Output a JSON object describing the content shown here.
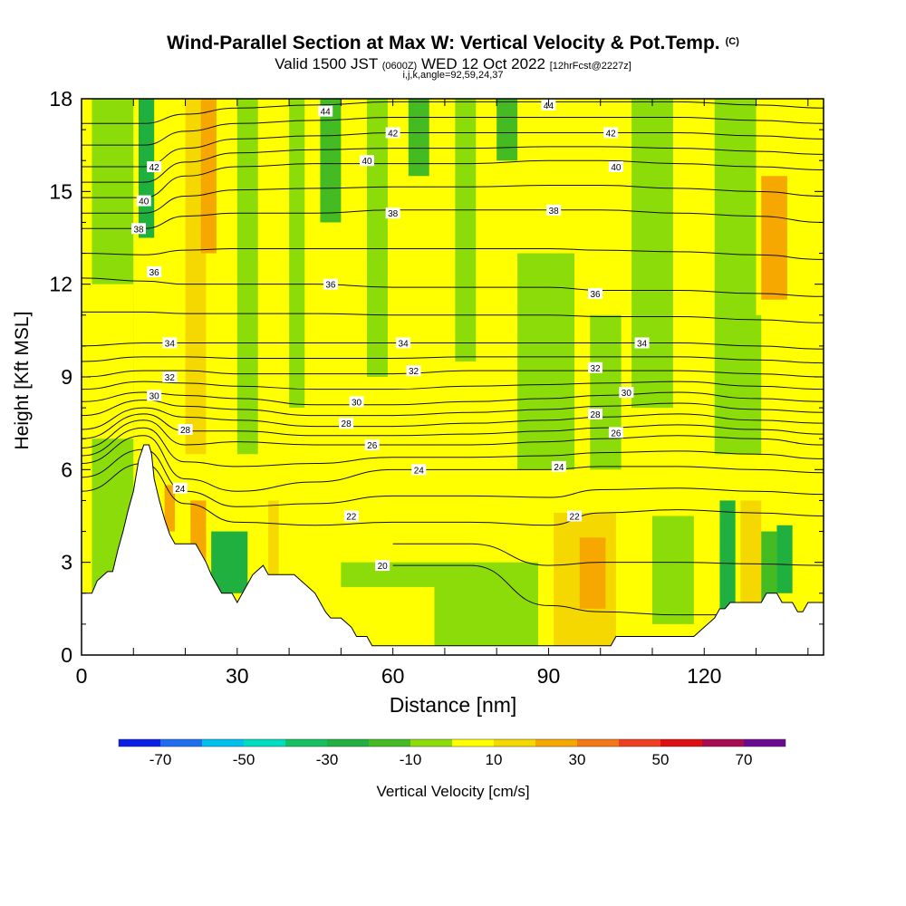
{
  "header": {
    "title": "Wind-Parallel Section at Max W: Vertical Velocity & Pot.Temp.",
    "copyright": "(C)",
    "valid_prefix": "Valid 1500 JST",
    "valid_utc": "(0600Z)",
    "valid_date": "WED 12 Oct 2022",
    "forecast_info": "[12hrFcst@2227z]",
    "section_info": "i,j,k,angle=92,59,24,37"
  },
  "chart_data": {
    "type": "heatmap",
    "title": "Wind-Parallel Section at Max W: Vertical Velocity & Pot.Temp.",
    "xlabel": "Distance [nm]",
    "ylabel": "Height [Kft MSL]",
    "xlim": [
      0,
      143
    ],
    "ylim": [
      0,
      18
    ],
    "x_ticks": [
      "0",
      "30",
      "60",
      "90",
      "120"
    ],
    "x_tick_values": [
      0,
      30,
      60,
      90,
      120
    ],
    "y_ticks": [
      "0",
      "3",
      "6",
      "9",
      "12",
      "15",
      "18"
    ],
    "y_tick_values": [
      0,
      3,
      6,
      9,
      12,
      15,
      18
    ],
    "colorbar": {
      "title": "Vertical Velocity [cm/s]",
      "boundaries": [
        -80,
        -70,
        -60,
        -50,
        -40,
        -30,
        -20,
        -10,
        0,
        10,
        20,
        30,
        40,
        50,
        60,
        70,
        80
      ],
      "colors": [
        "#0a1ee6",
        "#1e6ef0",
        "#00c0f0",
        "#00dcc0",
        "#14c060",
        "#20b040",
        "#44bb22",
        "#8cdc0a",
        "#ffff00",
        "#f4d800",
        "#f6a800",
        "#f27818",
        "#ee4020",
        "#dc1010",
        "#a80c50",
        "#6a0a90"
      ],
      "tick_labels": [
        "-70",
        "-50",
        "-30",
        "-10",
        "10",
        "30",
        "50",
        "70"
      ],
      "tick_values": [
        -70,
        -50,
        -30,
        -10,
        10,
        30,
        50,
        70
      ]
    },
    "field_regions": [
      {
        "x": [
          0,
          143
        ],
        "y": [
          0,
          18
        ],
        "w": 5
      },
      {
        "x": [
          2,
          10
        ],
        "y": [
          0,
          18
        ],
        "w": -8
      },
      {
        "x": [
          11,
          14
        ],
        "y": [
          13.5,
          18
        ],
        "w": -25
      },
      {
        "x": [
          20,
          24
        ],
        "y": [
          4,
          18
        ],
        "w": 18
      },
      {
        "x": [
          23,
          26
        ],
        "y": [
          13,
          18
        ],
        "w": 20
      },
      {
        "x": [
          30,
          34
        ],
        "y": [
          6.5,
          18
        ],
        "w": -8
      },
      {
        "x": [
          40,
          43
        ],
        "y": [
          8,
          18
        ],
        "w": -10
      },
      {
        "x": [
          46,
          50
        ],
        "y": [
          14,
          18
        ],
        "w": -12
      },
      {
        "x": [
          55,
          59
        ],
        "y": [
          9,
          18
        ],
        "w": -8
      },
      {
        "x": [
          63,
          67
        ],
        "y": [
          15.5,
          18
        ],
        "w": -15
      },
      {
        "x": [
          72,
          76
        ],
        "y": [
          9.5,
          18
        ],
        "w": -8
      },
      {
        "x": [
          80,
          84
        ],
        "y": [
          16,
          18
        ],
        "w": -12
      },
      {
        "x": [
          84,
          95
        ],
        "y": [
          6,
          13
        ],
        "w": -7
      },
      {
        "x": [
          98,
          104
        ],
        "y": [
          6,
          11
        ],
        "w": -7
      },
      {
        "x": [
          106,
          114
        ],
        "y": [
          8,
          18
        ],
        "w": -7
      },
      {
        "x": [
          122,
          131
        ],
        "y": [
          6.5,
          18
        ],
        "w": -6
      },
      {
        "x": [
          130,
          141
        ],
        "y": [
          11,
          18
        ],
        "w": 6
      },
      {
        "x": [
          131,
          136
        ],
        "y": [
          11.5,
          15.5
        ],
        "w": 22
      },
      {
        "x": [
          2,
          10
        ],
        "y": [
          7,
          12
        ],
        "w": 8
      },
      {
        "x": [
          13,
          24
        ],
        "y": [
          2.5,
          6.5
        ],
        "w": 8
      },
      {
        "x": [
          16,
          18
        ],
        "y": [
          4,
          5.5
        ],
        "w": 24
      },
      {
        "x": [
          21,
          24
        ],
        "y": [
          3,
          5
        ],
        "w": 22
      },
      {
        "x": [
          25,
          32
        ],
        "y": [
          2,
          4
        ],
        "w": -22
      },
      {
        "x": [
          36,
          38
        ],
        "y": [
          2.5,
          5
        ],
        "w": 15
      },
      {
        "x": [
          50,
          88
        ],
        "y": [
          0,
          3
        ],
        "w": -6
      },
      {
        "x": [
          48,
          68
        ],
        "y": [
          0.3,
          2.2
        ],
        "w": 5
      },
      {
        "x": [
          91,
          103
        ],
        "y": [
          0.3,
          4.6
        ],
        "w": 15
      },
      {
        "x": [
          96,
          101
        ],
        "y": [
          1.5,
          3.8
        ],
        "w": 28
      },
      {
        "x": [
          104,
          110
        ],
        "y": [
          0.5,
          4.5
        ],
        "w": 6
      },
      {
        "x": [
          110,
          118
        ],
        "y": [
          1,
          4.5
        ],
        "w": -6
      },
      {
        "x": [
          119,
          122
        ],
        "y": [
          1.5,
          5
        ],
        "w": 8
      },
      {
        "x": [
          123,
          126
        ],
        "y": [
          1.5,
          5
        ],
        "w": -28
      },
      {
        "x": [
          127,
          131
        ],
        "y": [
          1.5,
          5
        ],
        "w": 10
      },
      {
        "x": [
          131,
          134
        ],
        "y": [
          1.5,
          4
        ],
        "w": -12
      },
      {
        "x": [
          134,
          137
        ],
        "y": [
          2,
          4.2
        ],
        "w": -25
      },
      {
        "x": [
          138,
          143
        ],
        "y": [
          0,
          6
        ],
        "w": 8
      }
    ],
    "terrain_kft": [
      [
        0,
        2.0
      ],
      [
        2,
        2.0
      ],
      [
        3,
        2.4
      ],
      [
        5,
        2.7
      ],
      [
        6,
        2.7
      ],
      [
        7,
        3.4
      ],
      [
        8,
        4.0
      ],
      [
        9,
        4.7
      ],
      [
        10,
        5.3
      ],
      [
        11,
        6.3
      ],
      [
        12,
        6.8
      ],
      [
        13,
        6.8
      ],
      [
        13.5,
        6.5
      ],
      [
        14,
        5.7
      ],
      [
        15,
        5.0
      ],
      [
        16,
        4.4
      ],
      [
        17,
        3.9
      ],
      [
        18,
        3.6
      ],
      [
        22,
        3.6
      ],
      [
        23,
        3.3
      ],
      [
        24,
        3.0
      ],
      [
        25,
        2.6
      ],
      [
        26,
        2.3
      ],
      [
        27,
        2.0
      ],
      [
        29,
        2.0
      ],
      [
        30,
        1.7
      ],
      [
        31,
        2.0
      ],
      [
        32,
        2.3
      ],
      [
        33,
        2.6
      ],
      [
        35,
        2.9
      ],
      [
        36,
        2.6
      ],
      [
        41,
        2.6
      ],
      [
        43,
        2.3
      ],
      [
        45,
        2.0
      ],
      [
        46,
        1.7
      ],
      [
        47,
        1.4
      ],
      [
        48,
        1.2
      ],
      [
        50,
        1.2
      ],
      [
        52,
        0.9
      ],
      [
        53,
        0.6
      ],
      [
        55,
        0.6
      ],
      [
        56,
        0.3
      ],
      [
        58,
        0.3
      ],
      [
        102,
        0.3
      ],
      [
        103,
        0.6
      ],
      [
        118,
        0.6
      ],
      [
        120,
        0.9
      ],
      [
        122,
        1.2
      ],
      [
        123,
        1.5
      ],
      [
        124,
        1.5
      ],
      [
        125,
        1.7
      ],
      [
        131,
        1.7
      ],
      [
        132,
        2.0
      ],
      [
        134,
        2.0
      ],
      [
        135,
        1.7
      ],
      [
        137,
        1.7
      ],
      [
        138,
        1.4
      ],
      [
        139,
        1.4
      ],
      [
        140,
        1.7
      ],
      [
        143,
        1.7
      ]
    ],
    "contour_interval": 1,
    "contour_start": 20,
    "contour_end": 45,
    "contour_heights_at": [
      0,
      12,
      20,
      30,
      45,
      60,
      75,
      90,
      100,
      115,
      130,
      143
    ],
    "contour_levels_kft": {
      "20": [
        -1,
        -1,
        -1,
        -1,
        -1,
        2.9,
        2.9,
        1.6,
        1.4,
        1.3,
        1.3,
        1.3
      ],
      "22": [
        5.3,
        6.2,
        4.9,
        4.3,
        4.2,
        4.3,
        4.3,
        4.2,
        4.6,
        4.7,
        4.6,
        4.5
      ],
      "24": [
        6.2,
        7.1,
        5.7,
        5.3,
        5.6,
        6.0,
        6.0,
        6.0,
        6.1,
        6.1,
        6.0,
        5.9
      ],
      "26": [
        6.7,
        7.6,
        6.8,
        6.9,
        6.8,
        6.8,
        6.8,
        6.9,
        7.0,
        7.1,
        7.0,
        6.8
      ],
      "28": [
        7.3,
        8.0,
        7.7,
        7.6,
        7.4,
        7.4,
        7.5,
        7.6,
        7.7,
        7.8,
        7.6,
        7.5
      ],
      "30": [
        8.2,
        8.5,
        8.4,
        8.3,
        8.1,
        8.1,
        8.2,
        8.3,
        8.4,
        8.5,
        8.3,
        8.2
      ],
      "32": [
        9.0,
        9.2,
        9.2,
        9.1,
        9.1,
        9.1,
        9.2,
        9.2,
        9.2,
        9.2,
        9.1,
        9.0
      ],
      "34": [
        10.0,
        10.1,
        10.1,
        10.1,
        10.1,
        10.1,
        10.1,
        10.1,
        10.1,
        10.1,
        10.0,
        9.9
      ],
      "36": [
        12.2,
        12.1,
        12.0,
        12.0,
        12.0,
        11.9,
        11.9,
        11.9,
        11.8,
        11.8,
        11.7,
        11.6
      ],
      "38": [
        13.8,
        13.8,
        14.2,
        14.3,
        14.3,
        14.4,
        14.4,
        14.4,
        14.4,
        14.3,
        14.2,
        14.0
      ],
      "40": [
        14.8,
        14.8,
        15.5,
        15.8,
        15.9,
        15.9,
        15.9,
        16.0,
        16.0,
        15.9,
        15.8,
        15.7
      ],
      "42": [
        15.8,
        15.8,
        16.4,
        16.7,
        16.8,
        16.9,
        16.9,
        16.9,
        16.9,
        16.9,
        16.8,
        16.7
      ],
      "44": [
        17.2,
        17.2,
        17.5,
        17.7,
        17.8,
        17.9,
        17.9,
        17.9,
        17.9,
        17.9,
        17.8,
        17.7
      ]
    },
    "contour_labels": [
      {
        "text": "44",
        "x": 47,
        "y": 17.6
      },
      {
        "text": "44",
        "x": 90,
        "y": 17.8
      },
      {
        "text": "42",
        "x": 60,
        "y": 16.9
      },
      {
        "text": "42",
        "x": 102,
        "y": 16.9
      },
      {
        "text": "42",
        "x": 14,
        "y": 15.8
      },
      {
        "text": "40",
        "x": 55,
        "y": 16.0
      },
      {
        "text": "40",
        "x": 103,
        "y": 15.8
      },
      {
        "text": "40",
        "x": 12,
        "y": 14.7
      },
      {
        "text": "38",
        "x": 60,
        "y": 14.3
      },
      {
        "text": "38",
        "x": 91,
        "y": 14.4
      },
      {
        "text": "38",
        "x": 11,
        "y": 13.8
      },
      {
        "text": "36",
        "x": 14,
        "y": 12.4
      },
      {
        "text": "36",
        "x": 48,
        "y": 12.0
      },
      {
        "text": "36",
        "x": 99,
        "y": 11.7
      },
      {
        "text": "34",
        "x": 17,
        "y": 10.1
      },
      {
        "text": "34",
        "x": 62,
        "y": 10.1
      },
      {
        "text": "34",
        "x": 108,
        "y": 10.1
      },
      {
        "text": "32",
        "x": 17,
        "y": 9.0
      },
      {
        "text": "32",
        "x": 64,
        "y": 9.2
      },
      {
        "text": "32",
        "x": 99,
        "y": 9.3
      },
      {
        "text": "30",
        "x": 14,
        "y": 8.4
      },
      {
        "text": "30",
        "x": 53,
        "y": 8.2
      },
      {
        "text": "30",
        "x": 105,
        "y": 8.5
      },
      {
        "text": "28",
        "x": 20,
        "y": 7.3
      },
      {
        "text": "28",
        "x": 51,
        "y": 7.5
      },
      {
        "text": "28",
        "x": 99,
        "y": 7.8
      },
      {
        "text": "26",
        "x": 56,
        "y": 6.8
      },
      {
        "text": "26",
        "x": 103,
        "y": 7.2
      },
      {
        "text": "24",
        "x": 19,
        "y": 5.4
      },
      {
        "text": "24",
        "x": 65,
        "y": 6.0
      },
      {
        "text": "24",
        "x": 92,
        "y": 6.1
      },
      {
        "text": "22",
        "x": 52,
        "y": 4.5
      },
      {
        "text": "22",
        "x": 95,
        "y": 4.5
      },
      {
        "text": "20",
        "x": 58,
        "y": 2.9
      }
    ]
  }
}
